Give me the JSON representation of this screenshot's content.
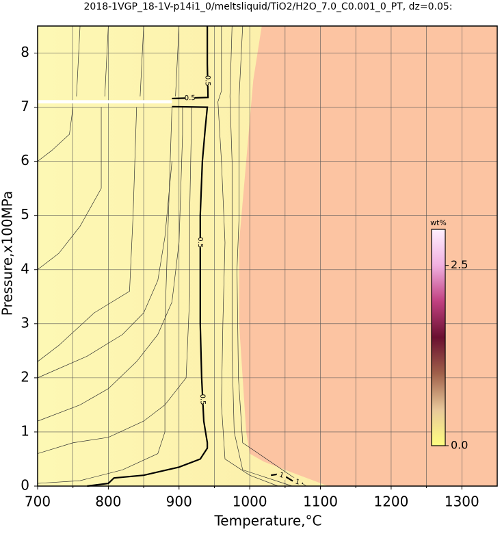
{
  "chart_data": {
    "type": "contour",
    "title": "2018-1VGP_18-1V-p14i1_0/meltsliquid/TiO2/H2O_7.0_C0.001_0_PT, dz=0.05:",
    "xlabel": "Temperature,°C",
    "ylabel": "Pressure,x100MPa",
    "xlim": [
      700,
      1350
    ],
    "ylim": [
      0,
      8.5
    ],
    "xticks": [
      700,
      800,
      900,
      1000,
      1100,
      1200,
      1300
    ],
    "xminorticks": [
      750,
      850,
      950,
      1050,
      1150,
      1250
    ],
    "yticks": [
      0,
      1,
      2,
      3,
      4,
      5,
      6,
      7,
      8
    ],
    "grid": true,
    "background_colors": [
      "#fdf8b4",
      "#fce8a4"
    ],
    "region": {
      "color": "#fcc4a2",
      "x": [
        1017,
        1005,
        995,
        985,
        985,
        990,
        995,
        1000,
        1020,
        1060,
        1111,
        1350,
        1350
      ],
      "y": [
        8.5,
        7.5,
        6,
        4.5,
        3,
        2,
        1,
        0.6,
        0.45,
        0.25,
        0,
        0,
        8.5
      ]
    },
    "gap": {
      "color": "#ffffff",
      "x": [
        700,
        890
      ],
      "y": [
        7.07,
        7.13
      ]
    },
    "contours": [
      {
        "level": 0.5,
        "x": [
          940,
          940,
          941,
          890,
          null,
          890,
          940,
          937,
          933,
          930,
          930,
          930,
          932,
          935,
          940,
          940,
          930,
          900,
          850,
          808,
          800,
          770
        ],
        "y": [
          8.5,
          7.8,
          7.18,
          7.16,
          null,
          7.01,
          7.0,
          6.6,
          6.0,
          5.0,
          4.0,
          3.0,
          2.0,
          1.2,
          0.8,
          0.7,
          0.5,
          0.35,
          0.2,
          0.15,
          0.05,
          0
        ]
      },
      {
        "level": 1,
        "x": [
          1030,
          1040,
          1050,
          1060,
          1075
        ],
        "y": [
          0.2,
          0.22,
          0.18,
          0.1,
          0.05
        ]
      }
    ],
    "thin_contours": [
      {
        "x": [
          960,
          960,
          955,
          960,
          965,
          962,
          960,
          965,
          1000,
          1040
        ],
        "y": [
          8.5,
          7.3,
          7.1,
          6,
          4.5,
          3,
          1.5,
          0.5,
          0.2,
          0
        ]
      },
      {
        "x": [
          975,
          972,
          975,
          975,
          975,
          978,
          990,
          1060
        ],
        "y": [
          8.5,
          7.2,
          6,
          4.2,
          2.5,
          1,
          0.3,
          0
        ]
      },
      {
        "x": [
          990,
          985,
          985,
          982,
          984,
          990,
          1080
        ],
        "y": [
          8.5,
          7.2,
          5,
          4,
          2,
          0.8,
          0
        ]
      },
      {
        "x": [
          900,
          895,
          null,
          890,
          885,
          880,
          880,
          870,
          820,
          760,
          700
        ],
        "y": [
          8.5,
          7.2,
          null,
          7.0,
          5,
          3,
          1,
          0.6,
          0.3,
          0.1,
          0.05
        ]
      },
      {
        "x": [
          850,
          845,
          null,
          840,
          835,
          830,
          780,
          730,
          700
        ],
        "y": [
          8.5,
          7.2,
          null,
          7.0,
          5,
          3.6,
          3.2,
          2.6,
          2.3
        ]
      },
      {
        "x": [
          800,
          795,
          null,
          790,
          790,
          760,
          730,
          700
        ],
        "y": [
          8.5,
          7.2,
          null,
          7.0,
          5.5,
          4.8,
          4.3,
          4.0
        ]
      },
      {
        "x": [
          760,
          755,
          null,
          750,
          745,
          720,
          700
        ],
        "y": [
          8.5,
          7.2,
          null,
          7.0,
          6.5,
          6.2,
          6.0
        ]
      },
      {
        "x": [
          700,
          750,
          800,
          850,
          880,
          910,
          915,
          915,
          918
        ],
        "y": [
          0.6,
          0.8,
          0.9,
          1.2,
          1.5,
          2.0,
          3.5,
          5.0,
          7.0
        ]
      },
      {
        "x": [
          700,
          760,
          800,
          840,
          870,
          890,
          900,
          905,
          905
        ],
        "y": [
          1.2,
          1.5,
          1.8,
          2.3,
          2.8,
          3.4,
          4.5,
          6.5,
          7.0
        ]
      },
      {
        "x": [
          700,
          770,
          820,
          850,
          870,
          880,
          890
        ],
        "y": [
          2.0,
          2.4,
          2.8,
          3.2,
          3.8,
          4.6,
          6.0
        ]
      }
    ],
    "colorbar": {
      "label": "wt%",
      "lim": [
        0,
        3.0
      ],
      "ticks": [
        {
          "value": 0,
          "label": "0.0"
        },
        2.5
      ],
      "colors": [
        "#ffff80",
        "#e8c89a",
        "#a0604a",
        "#6a1030",
        "#c04080",
        "#f0b0e0",
        "#fff0ff"
      ]
    }
  }
}
